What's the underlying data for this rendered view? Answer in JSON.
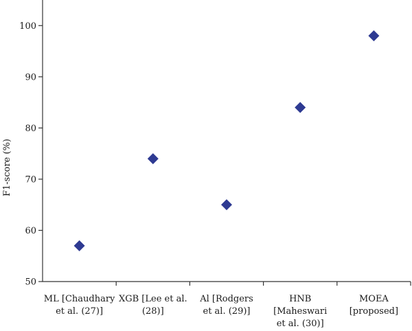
{
  "chart_data": {
    "type": "scatter",
    "title": "",
    "xlabel": "",
    "ylabel": "F1-score (%)",
    "ylim": [
      50,
      105
    ],
    "yticks": [
      50,
      60,
      70,
      80,
      90,
      100
    ],
    "grid": false,
    "legend": "none",
    "marker": "diamond",
    "marker_color": "#2e3a92",
    "categories": [
      [
        "ML [Chaudhary",
        "et al. (27)]"
      ],
      [
        "XGB [Lee et al.",
        "(28)]"
      ],
      [
        "Al [Rodgers",
        "et al. (29)]"
      ],
      [
        "HNB",
        "[Maheswari",
        "et al. (30)]"
      ],
      [
        "MOEA",
        "[proposed]"
      ]
    ],
    "values": [
      57,
      74,
      65,
      84,
      98
    ]
  }
}
